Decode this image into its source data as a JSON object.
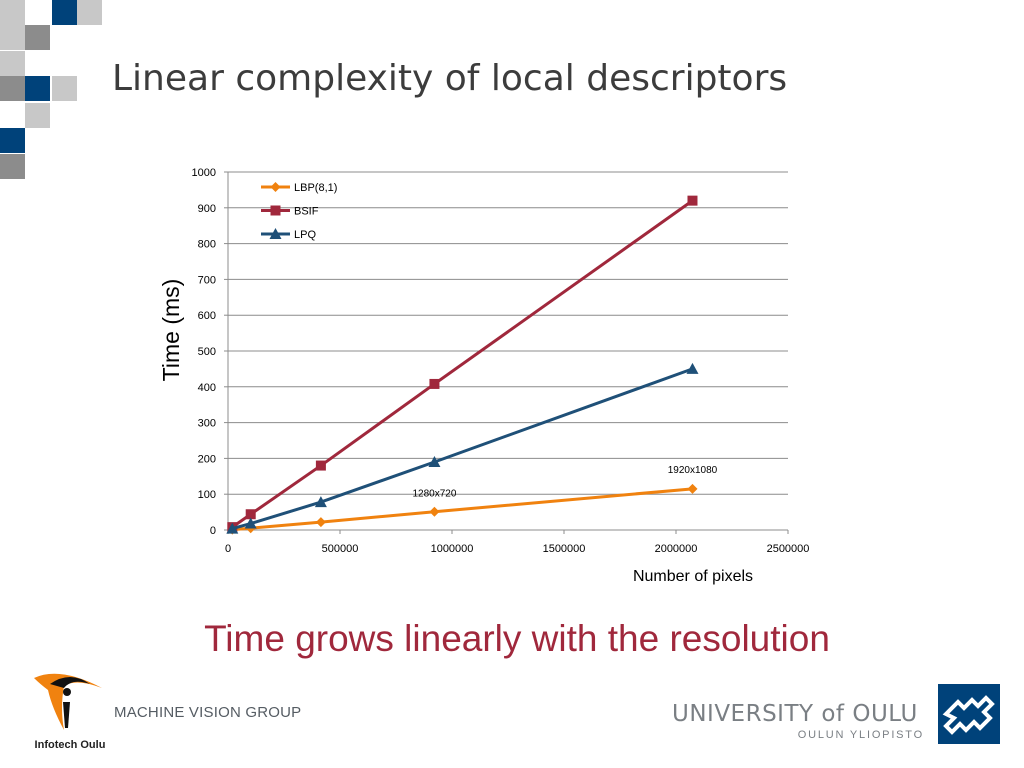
{
  "slide": {
    "title": "Linear complexity of local descriptors",
    "conclusion": "Time grows linearly with the resolution"
  },
  "footer": {
    "logo_text": "Infotech Oulu",
    "group": "MACHINE VISION GROUP",
    "university": "UNIVERSITY of OULU",
    "university_sub": "OULUN YLIOPISTO"
  },
  "colors": {
    "title": "#3c3c3c",
    "conclusion": "#a0283c",
    "lbp": "#f0820f",
    "bsif": "#a0283c",
    "lpq": "#1f5078",
    "deco_blue": "#00427a",
    "deco_gray_dark": "#8c8c8c",
    "deco_gray_light": "#c8c8c8"
  },
  "chart_data": {
    "type": "line",
    "xlabel": "Number of pixels",
    "ylabel": "Time (ms)",
    "xlim": [
      0,
      2500000
    ],
    "ylim": [
      0,
      1000
    ],
    "xticks": [
      0,
      500000,
      1000000,
      1500000,
      2000000,
      2500000
    ],
    "yticks": [
      0,
      100,
      200,
      300,
      400,
      500,
      600,
      700,
      800,
      900,
      1000
    ],
    "grid": "horizontal",
    "legend_position": "top-left",
    "series": [
      {
        "name": "LBP(8,1)",
        "marker": "diamond",
        "x": [
          19200,
          101376,
          414720,
          921600,
          2073600
        ],
        "y": [
          1,
          5,
          22,
          51,
          115
        ]
      },
      {
        "name": "BSIF",
        "marker": "square",
        "x": [
          19200,
          101376,
          414720,
          921600,
          2073600
        ],
        "y": [
          8,
          44,
          180,
          408,
          920
        ]
      },
      {
        "name": "LPQ",
        "marker": "triangle",
        "x": [
          19200,
          101376,
          414720,
          921600,
          2073600
        ],
        "y": [
          4,
          18,
          78,
          190,
          450
        ]
      }
    ],
    "annotations": [
      {
        "text": "1280x720",
        "x": 921600,
        "y": 105
      },
      {
        "text": "1920x1080",
        "x": 2073600,
        "y": 170
      }
    ]
  }
}
